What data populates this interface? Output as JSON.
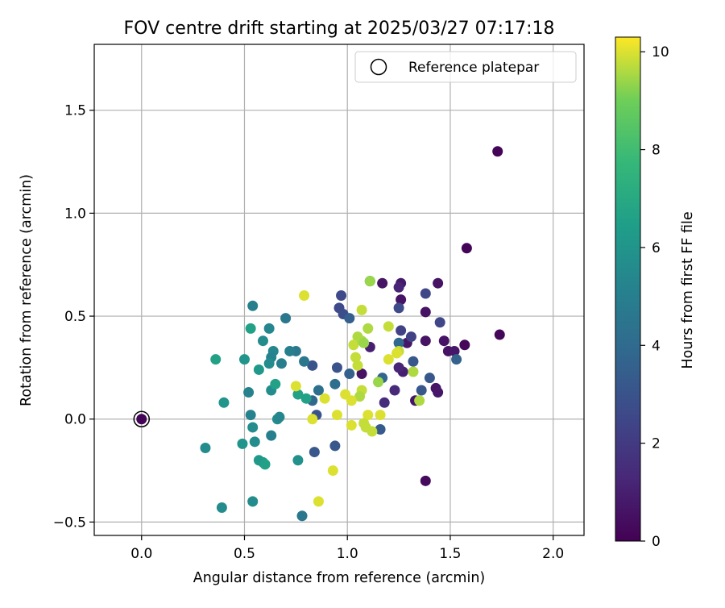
{
  "chart_data": {
    "type": "scatter",
    "title": "FOV centre drift starting at 2025/03/27 07:17:18",
    "xlabel": "Angular distance from reference (arcmin)",
    "ylabel": "Rotation from reference (arcmin)",
    "xlim": [
      -0.23,
      2.15
    ],
    "ylim": [
      -0.565,
      1.82
    ],
    "xticks": [
      "0.0",
      "0.5",
      "1.0",
      "1.5",
      "2.0"
    ],
    "xtick_values": [
      0.0,
      0.5,
      1.0,
      1.5,
      2.0
    ],
    "yticks": [
      "−0.5",
      "0.0",
      "0.5",
      "1.0",
      "1.5"
    ],
    "ytick_values": [
      -0.5,
      0.0,
      0.5,
      1.0,
      1.5
    ],
    "grid": true,
    "legend": {
      "placement": "top-right",
      "entries": [
        "Reference platepar"
      ]
    },
    "reference_point": {
      "x": 0.0,
      "y": 0.0
    },
    "colorbar": {
      "label": "Hours from first FF file",
      "min": 0,
      "max": 10.3,
      "ticks": [
        "0",
        "2",
        "4",
        "6",
        "8",
        "10"
      ],
      "tick_values": [
        0,
        2,
        4,
        6,
        8,
        10
      ],
      "colormap": "viridis"
    },
    "points": [
      {
        "x": 0.0,
        "y": 0.0,
        "c": 0.1
      },
      {
        "x": 1.73,
        "y": 1.3,
        "c": 0.1
      },
      {
        "x": 1.58,
        "y": 0.83,
        "c": 0.1
      },
      {
        "x": 1.74,
        "y": 0.41,
        "c": 0.2
      },
      {
        "x": 1.57,
        "y": 0.36,
        "c": 0.2
      },
      {
        "x": 1.38,
        "y": -0.3,
        "c": 0.3
      },
      {
        "x": 1.44,
        "y": 0.66,
        "c": 0.6
      },
      {
        "x": 1.17,
        "y": 0.66,
        "c": 0.6
      },
      {
        "x": 1.26,
        "y": 0.66,
        "c": 0.8
      },
      {
        "x": 1.25,
        "y": 0.64,
        "c": 1.2
      },
      {
        "x": 1.26,
        "y": 0.58,
        "c": 0.6
      },
      {
        "x": 1.38,
        "y": 0.52,
        "c": 0.6
      },
      {
        "x": 1.38,
        "y": 0.38,
        "c": 0.6
      },
      {
        "x": 1.47,
        "y": 0.38,
        "c": 0.6
      },
      {
        "x": 1.49,
        "y": 0.33,
        "c": 0.6
      },
      {
        "x": 1.52,
        "y": 0.33,
        "c": 0.7
      },
      {
        "x": 1.43,
        "y": 0.15,
        "c": 0.6
      },
      {
        "x": 1.44,
        "y": 0.13,
        "c": 0.7
      },
      {
        "x": 1.33,
        "y": 0.09,
        "c": 0.7
      },
      {
        "x": 1.29,
        "y": 0.37,
        "c": 0.7
      },
      {
        "x": 1.27,
        "y": 0.23,
        "c": 1.0
      },
      {
        "x": 1.25,
        "y": 0.25,
        "c": 1.2
      },
      {
        "x": 1.18,
        "y": 0.08,
        "c": 1.5
      },
      {
        "x": 1.23,
        "y": 0.14,
        "c": 1.4
      },
      {
        "x": 1.11,
        "y": 0.35,
        "c": 1.0
      },
      {
        "x": 1.07,
        "y": 0.22,
        "c": 0.6
      },
      {
        "x": 1.11,
        "y": 0.67,
        "c": 2.2
      },
      {
        "x": 1.26,
        "y": 0.43,
        "c": 2.3
      },
      {
        "x": 1.31,
        "y": 0.4,
        "c": 2.3
      },
      {
        "x": 1.45,
        "y": 0.47,
        "c": 2.5
      },
      {
        "x": 1.38,
        "y": 0.61,
        "c": 2.5
      },
      {
        "x": 1.25,
        "y": 0.54,
        "c": 2.6
      },
      {
        "x": 0.97,
        "y": 0.6,
        "c": 2.6
      },
      {
        "x": 0.96,
        "y": 0.54,
        "c": 2.6
      },
      {
        "x": 0.98,
        "y": 0.51,
        "c": 2.8
      },
      {
        "x": 1.01,
        "y": 0.49,
        "c": 3.5
      },
      {
        "x": 1.4,
        "y": 0.2,
        "c": 3.2
      },
      {
        "x": 1.32,
        "y": 0.28,
        "c": 3.2
      },
      {
        "x": 1.36,
        "y": 0.14,
        "c": 3.2
      },
      {
        "x": 1.53,
        "y": 0.29,
        "c": 3.6
      },
      {
        "x": 1.17,
        "y": 0.2,
        "c": 3.8
      },
      {
        "x": 1.16,
        "y": -0.05,
        "c": 3.3
      },
      {
        "x": 1.25,
        "y": 0.37,
        "c": 3.9
      },
      {
        "x": 0.95,
        "y": 0.25,
        "c": 3.0
      },
      {
        "x": 1.01,
        "y": 0.22,
        "c": 3.6
      },
      {
        "x": 0.94,
        "y": 0.17,
        "c": 4.2
      },
      {
        "x": 0.83,
        "y": 0.26,
        "c": 3.0
      },
      {
        "x": 0.85,
        "y": 0.02,
        "c": 3.0
      },
      {
        "x": 0.84,
        "y": -0.16,
        "c": 3.2
      },
      {
        "x": 0.94,
        "y": -0.13,
        "c": 3.2
      },
      {
        "x": 0.83,
        "y": 0.09,
        "c": 3.9
      },
      {
        "x": 0.86,
        "y": 0.14,
        "c": 4.2
      },
      {
        "x": 0.79,
        "y": 0.28,
        "c": 4.6
      },
      {
        "x": 0.75,
        "y": 0.33,
        "c": 4.6
      },
      {
        "x": 0.72,
        "y": 0.33,
        "c": 5.0
      },
      {
        "x": 0.7,
        "y": 0.49,
        "c": 4.6
      },
      {
        "x": 0.68,
        "y": 0.27,
        "c": 5.0
      },
      {
        "x": 0.78,
        "y": -0.47,
        "c": 4.6
      },
      {
        "x": 0.64,
        "y": 0.33,
        "c": 5.4
      },
      {
        "x": 0.62,
        "y": 0.44,
        "c": 5.4
      },
      {
        "x": 0.59,
        "y": 0.38,
        "c": 5.6
      },
      {
        "x": 0.63,
        "y": 0.3,
        "c": 5.2
      },
      {
        "x": 0.62,
        "y": 0.27,
        "c": 5.6
      },
      {
        "x": 0.54,
        "y": 0.55,
        "c": 5.0
      },
      {
        "x": 0.53,
        "y": 0.44,
        "c": 6.6
      },
      {
        "x": 0.57,
        "y": 0.24,
        "c": 6.2
      },
      {
        "x": 0.63,
        "y": 0.14,
        "c": 5.6
      },
      {
        "x": 0.65,
        "y": 0.17,
        "c": 6.6
      },
      {
        "x": 0.66,
        "y": 0.0,
        "c": 5.6
      },
      {
        "x": 0.63,
        "y": -0.08,
        "c": 5.0
      },
      {
        "x": 0.67,
        "y": 0.01,
        "c": 5.4
      },
      {
        "x": 0.76,
        "y": 0.12,
        "c": 6.6
      },
      {
        "x": 0.8,
        "y": 0.1,
        "c": 6.6
      },
      {
        "x": 0.76,
        "y": -0.2,
        "c": 5.8
      },
      {
        "x": 0.52,
        "y": 0.13,
        "c": 5.2
      },
      {
        "x": 0.53,
        "y": 0.02,
        "c": 5.2
      },
      {
        "x": 0.54,
        "y": -0.04,
        "c": 5.6
      },
      {
        "x": 0.55,
        "y": -0.11,
        "c": 5.6
      },
      {
        "x": 0.5,
        "y": 0.29,
        "c": 6.0
      },
      {
        "x": 0.49,
        "y": -0.12,
        "c": 6.0
      },
      {
        "x": 0.57,
        "y": -0.2,
        "c": 6.2
      },
      {
        "x": 0.59,
        "y": -0.21,
        "c": 6.2
      },
      {
        "x": 0.6,
        "y": -0.22,
        "c": 6.6
      },
      {
        "x": 0.54,
        "y": -0.4,
        "c": 5.6
      },
      {
        "x": 0.36,
        "y": 0.29,
        "c": 6.6
      },
      {
        "x": 0.4,
        "y": 0.08,
        "c": 6.0
      },
      {
        "x": 0.31,
        "y": -0.14,
        "c": 5.6
      },
      {
        "x": 0.39,
        "y": -0.43,
        "c": 5.6
      },
      {
        "x": 0.79,
        "y": 0.6,
        "c": 10.0
      },
      {
        "x": 1.11,
        "y": 0.67,
        "c": 9.4
      },
      {
        "x": 1.07,
        "y": 0.53,
        "c": 9.8
      },
      {
        "x": 1.1,
        "y": 0.44,
        "c": 9.6
      },
      {
        "x": 1.2,
        "y": 0.45,
        "c": 9.8
      },
      {
        "x": 1.05,
        "y": 0.4,
        "c": 9.6
      },
      {
        "x": 1.03,
        "y": 0.36,
        "c": 9.8
      },
      {
        "x": 1.07,
        "y": 0.38,
        "c": 9.6
      },
      {
        "x": 1.08,
        "y": 0.37,
        "c": 9.4
      },
      {
        "x": 1.04,
        "y": 0.3,
        "c": 9.8
      },
      {
        "x": 1.05,
        "y": 0.26,
        "c": 9.8
      },
      {
        "x": 1.25,
        "y": 0.33,
        "c": 9.8
      },
      {
        "x": 1.24,
        "y": 0.32,
        "c": 10.0
      },
      {
        "x": 1.2,
        "y": 0.29,
        "c": 10.0
      },
      {
        "x": 1.32,
        "y": 0.23,
        "c": 9.6
      },
      {
        "x": 1.15,
        "y": 0.18,
        "c": 9.4
      },
      {
        "x": 1.35,
        "y": 0.09,
        "c": 9.6
      },
      {
        "x": 0.75,
        "y": 0.16,
        "c": 10.0
      },
      {
        "x": 1.07,
        "y": 0.14,
        "c": 9.8
      },
      {
        "x": 1.06,
        "y": 0.11,
        "c": 9.6
      },
      {
        "x": 0.99,
        "y": 0.12,
        "c": 10.0
      },
      {
        "x": 1.02,
        "y": 0.09,
        "c": 10.0
      },
      {
        "x": 0.89,
        "y": 0.1,
        "c": 10.0
      },
      {
        "x": 1.16,
        "y": 0.02,
        "c": 10.0
      },
      {
        "x": 1.1,
        "y": 0.02,
        "c": 10.0
      },
      {
        "x": 0.95,
        "y": 0.02,
        "c": 10.0
      },
      {
        "x": 0.83,
        "y": 0.0,
        "c": 10.0
      },
      {
        "x": 1.02,
        "y": -0.03,
        "c": 10.0
      },
      {
        "x": 1.08,
        "y": -0.02,
        "c": 9.8
      },
      {
        "x": 1.09,
        "y": -0.04,
        "c": 9.8
      },
      {
        "x": 1.12,
        "y": -0.06,
        "c": 9.8
      },
      {
        "x": 0.93,
        "y": -0.25,
        "c": 10.0
      },
      {
        "x": 0.86,
        "y": -0.4,
        "c": 10.0
      }
    ]
  }
}
